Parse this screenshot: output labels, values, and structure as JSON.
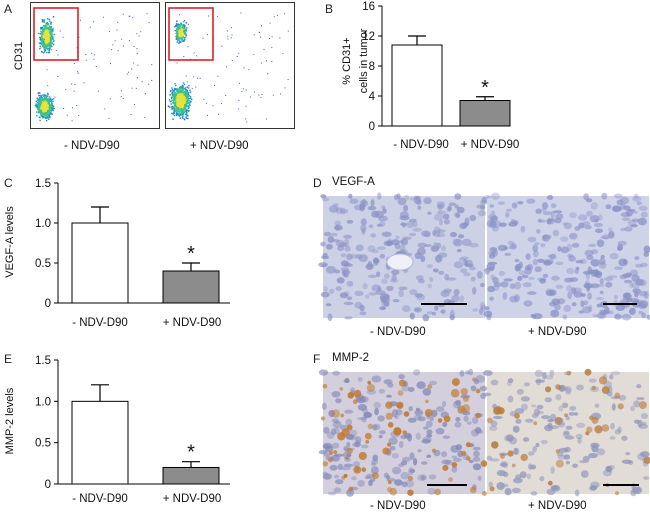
{
  "figure": {
    "panelA": {
      "letter": "A",
      "ylabel": "CD31",
      "left_label": "- NDV-D90",
      "right_label": "+ NDV-D90"
    },
    "panelD": {
      "letter": "D",
      "title": "VEGF-A",
      "left_label": "- NDV-D90",
      "right_label": "+ NDV-D90"
    },
    "panelF": {
      "letter": "F",
      "title": "MMP-2",
      "left_label": "- NDV-D90",
      "right_label": "+ NDV-D90"
    },
    "colors": {
      "bar_control": "#ffffff",
      "bar_treated": "#8c8c8c",
      "gate": "#e0202a"
    }
  },
  "chart_data": [
    {
      "id": "B",
      "letter": "B",
      "type": "bar",
      "categories": [
        "- NDV-D90",
        "+ NDV-D90"
      ],
      "values": [
        10.8,
        3.4
      ],
      "errors": [
        1.2,
        0.5
      ],
      "significance": [
        "",
        "*"
      ],
      "ylabel_lines": [
        "% CD31+",
        "cells in tumor"
      ],
      "yticks": [
        "0",
        "4",
        "8",
        "12",
        "16"
      ],
      "ylim": [
        0,
        16
      ]
    },
    {
      "id": "C",
      "letter": "C",
      "type": "bar",
      "categories": [
        "- NDV-D90",
        "+ NDV-D90"
      ],
      "values": [
        1.0,
        0.4
      ],
      "errors": [
        0.2,
        0.1
      ],
      "significance": [
        "",
        "*"
      ],
      "ylabel_lines": [
        "VEGF-A levels"
      ],
      "yticks": [
        "0",
        "0.5",
        "1.0",
        "1.5"
      ],
      "ylim": [
        0,
        1.5
      ]
    },
    {
      "id": "E",
      "letter": "E",
      "type": "bar",
      "categories": [
        "- NDV-D90",
        "+ NDV-D90"
      ],
      "values": [
        1.0,
        0.2
      ],
      "errors": [
        0.2,
        0.07
      ],
      "significance": [
        "",
        "*"
      ],
      "ylabel_lines": [
        "MMP-2 levels"
      ],
      "yticks": [
        "0",
        "0.5",
        "1.0",
        "1.5"
      ],
      "ylim": [
        0,
        1.5
      ]
    }
  ]
}
